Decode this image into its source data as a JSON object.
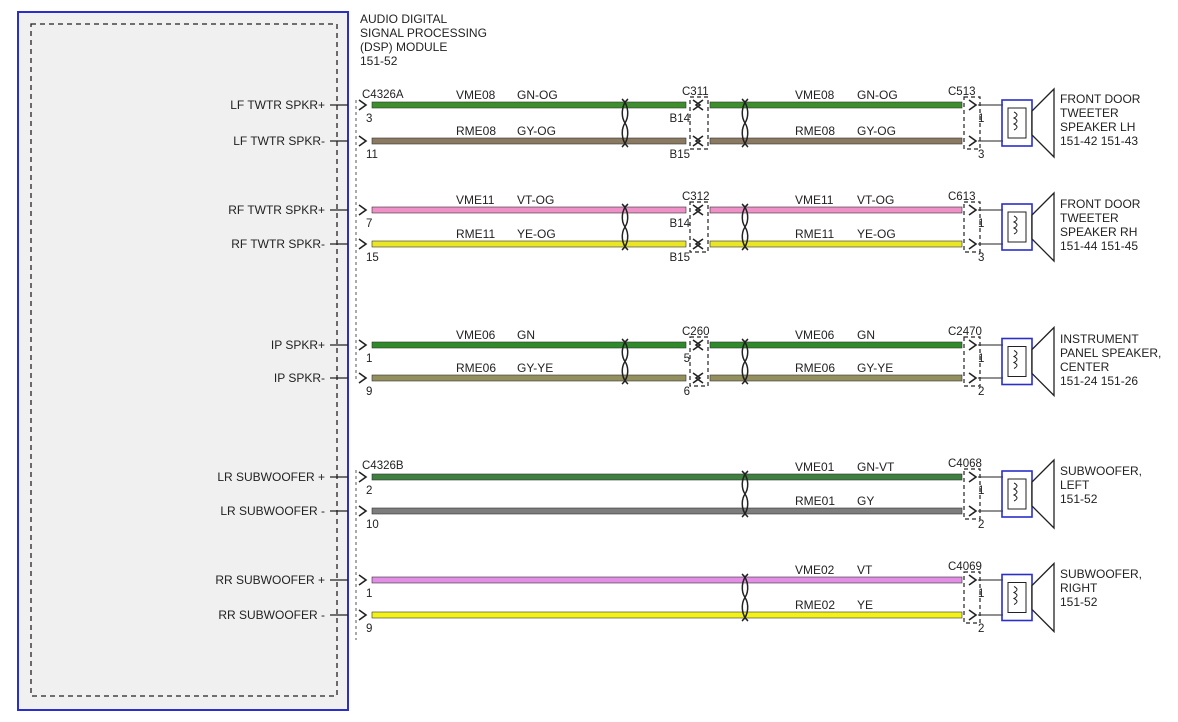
{
  "module": {
    "title_lines": [
      "AUDIO DIGITAL",
      "SIGNAL PROCESSING",
      "(DSP) MODULE"
    ],
    "ref": "151-52",
    "connector_a": "C4326A",
    "connector_b": "C4326B"
  },
  "colors": {
    "GN": "#2f8a2a",
    "GN-OG": "#3c8f2c",
    "GN-VT": "#3f7f3f",
    "GY": "#7d7d7d",
    "GY-OG": "#8a7a62",
    "GY-YE": "#94905e",
    "VT": "#e48de6",
    "VT-OG": "#ef90c8",
    "YE": "#f2f21a",
    "YE-OG": "#e8e625",
    "box": "#2b2fc8"
  },
  "circuits": [
    {
      "pins": [
        {
          "label": "LF TWTR SPKR+",
          "pin": "3",
          "wire": "VME08",
          "color": "GN-OG",
          "mid_pin": "B14",
          "wire2": "VME08",
          "color2": "GN-OG",
          "end_pin": "1"
        },
        {
          "label": "LF TWTR SPKR-",
          "pin": "11",
          "wire": "RME08",
          "color": "GY-OG",
          "mid_pin": "B15",
          "wire2": "RME08",
          "color2": "GY-OG",
          "end_pin": "3"
        }
      ],
      "mid_connector": "C311",
      "end_connector": "C513",
      "device_lines": [
        "FRONT DOOR",
        "TWEETER",
        "SPEAKER LH"
      ],
      "device_ref": "151-42  151-43"
    },
    {
      "pins": [
        {
          "label": "RF TWTR SPKR+",
          "pin": "7",
          "wire": "VME11",
          "color": "VT-OG",
          "mid_pin": "B14",
          "wire2": "VME11",
          "color2": "VT-OG",
          "end_pin": "1"
        },
        {
          "label": "RF TWTR SPKR-",
          "pin": "15",
          "wire": "RME11",
          "color": "YE-OG",
          "mid_pin": "B15",
          "wire2": "RME11",
          "color2": "YE-OG",
          "end_pin": "3"
        }
      ],
      "mid_connector": "C312",
      "end_connector": "C613",
      "device_lines": [
        "FRONT DOOR",
        "TWEETER",
        "SPEAKER RH"
      ],
      "device_ref": "151-44  151-45"
    },
    {
      "pins": [
        {
          "label": "IP SPKR+",
          "pin": "1",
          "wire": "VME06",
          "color": "GN",
          "mid_pin": "5",
          "wire2": "VME06",
          "color2": "GN",
          "end_pin": "1"
        },
        {
          "label": "IP SPKR-",
          "pin": "9",
          "wire": "RME06",
          "color": "GY-YE",
          "mid_pin": "6",
          "wire2": "RME06",
          "color2": "GY-YE",
          "end_pin": "2"
        }
      ],
      "mid_connector": "C260",
      "end_connector": "C2470",
      "device_lines": [
        "INSTRUMENT",
        "PANEL SPEAKER,",
        "CENTER"
      ],
      "device_ref": "151-24  151-26"
    },
    {
      "pins": [
        {
          "label": "LR SUBWOOFER +",
          "pin": "2",
          "wire2": "VME01",
          "color2": "GN-VT",
          "end_pin": "1"
        },
        {
          "label": "LR SUBWOOFER -",
          "pin": "10",
          "wire2": "RME01",
          "color2": "GY",
          "end_pin": "2"
        }
      ],
      "end_connector": "C4068",
      "device_lines": [
        "SUBWOOFER,",
        "LEFT"
      ],
      "device_ref": "151-52"
    },
    {
      "pins": [
        {
          "label": "RR SUBWOOFER +",
          "pin": "1",
          "wire2": "VME02",
          "color2": "VT",
          "end_pin": "1"
        },
        {
          "label": "RR SUBWOOFER -",
          "pin": "9",
          "wire2": "RME02",
          "color2": "YE",
          "end_pin": "2"
        }
      ],
      "end_connector": "C4069",
      "device_lines": [
        "SUBWOOFER,",
        "RIGHT"
      ],
      "device_ref": "151-52"
    }
  ]
}
